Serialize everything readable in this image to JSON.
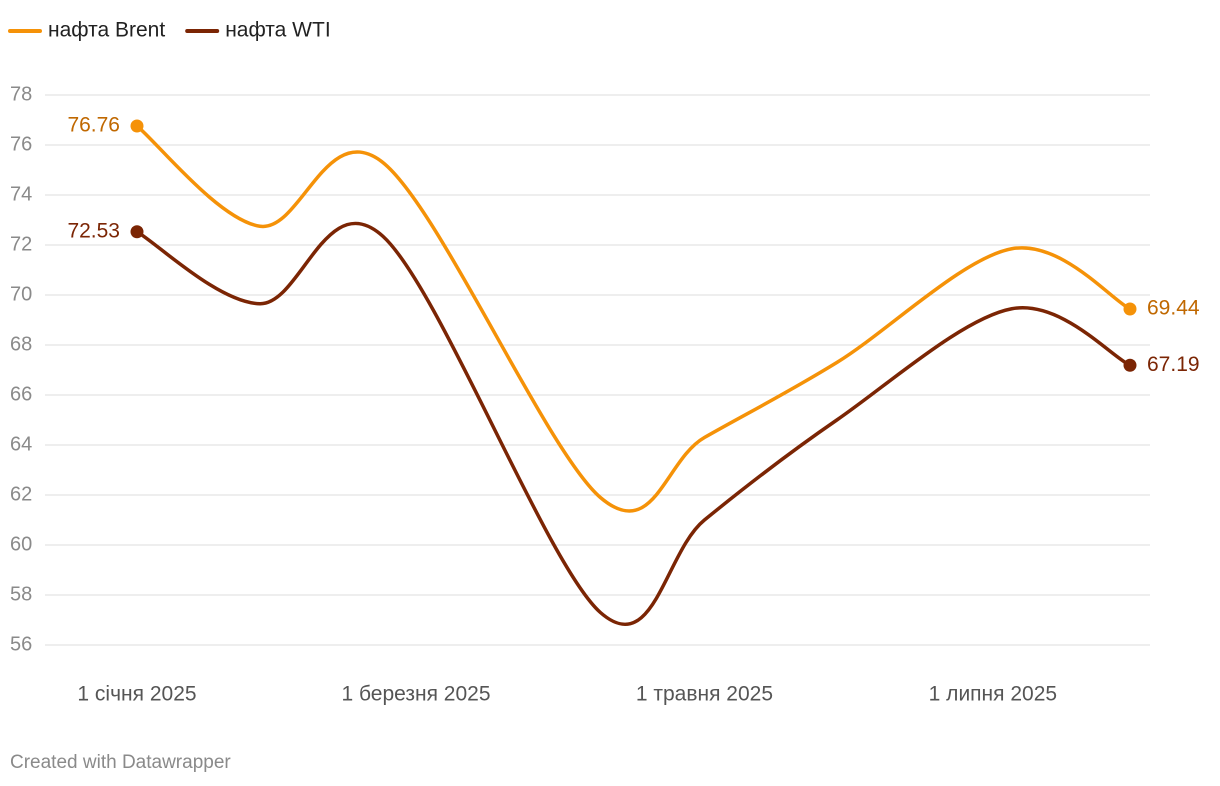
{
  "chart_data": {
    "type": "line",
    "x": [
      "2025-01-01",
      "2025-01-27",
      "2025-02-22",
      "2025-04-09",
      "2025-05-01",
      "2025-05-29",
      "2025-07-05",
      "2025-07-30"
    ],
    "series": [
      {
        "name": "нафта Brent",
        "color": "#f59208",
        "label_color": "#c06800",
        "values": [
          76.76,
          72.75,
          75.3,
          61.9,
          64.3,
          67.3,
          71.85,
          69.44
        ]
      },
      {
        "name": "нафта WTI",
        "color": "#7b2504",
        "label_color": "#7b2504",
        "values": [
          72.53,
          69.65,
          72.35,
          57.3,
          61.0,
          65.0,
          69.45,
          67.19
        ]
      }
    ],
    "xlim": [
      "2025-01-01",
      "2025-07-30"
    ],
    "xticks": [
      {
        "value": "2025-01-01",
        "label": "1 січня 2025"
      },
      {
        "value": "2025-03-01",
        "label": "1 березня 2025"
      },
      {
        "value": "2025-05-01",
        "label": "1 травня 2025"
      },
      {
        "value": "2025-07-01",
        "label": "1 липня 2025"
      }
    ],
    "ylim": [
      56,
      78
    ],
    "yticks": [
      56,
      58,
      60,
      62,
      64,
      66,
      68,
      70,
      72,
      74,
      76,
      78
    ],
    "grid": true,
    "legend": "top-left",
    "footer": "Created with Datawrapper"
  }
}
